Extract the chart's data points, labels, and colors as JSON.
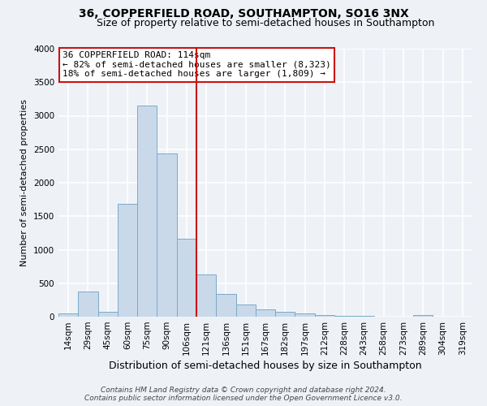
{
  "title": "36, COPPERFIELD ROAD, SOUTHAMPTON, SO16 3NX",
  "subtitle": "Size of property relative to semi-detached houses in Southampton",
  "xlabel": "Distribution of semi-detached houses by size in Southampton",
  "ylabel": "Number of semi-detached properties",
  "bin_labels": [
    "14sqm",
    "29sqm",
    "45sqm",
    "60sqm",
    "75sqm",
    "90sqm",
    "106sqm",
    "121sqm",
    "136sqm",
    "151sqm",
    "167sqm",
    "182sqm",
    "197sqm",
    "212sqm",
    "228sqm",
    "243sqm",
    "258sqm",
    "273sqm",
    "289sqm",
    "304sqm",
    "319sqm"
  ],
  "bar_heights": [
    50,
    375,
    75,
    1680,
    3150,
    2440,
    1160,
    630,
    340,
    185,
    110,
    70,
    50,
    30,
    15,
    10,
    5,
    5,
    30,
    5,
    0
  ],
  "property_size": 114,
  "property_label": "36 COPPERFIELD ROAD: 114sqm",
  "annotation_line1": "← 82% of semi-detached houses are smaller (8,323)",
  "annotation_line2": "18% of semi-detached houses are larger (1,809) →",
  "bar_color": "#c9d9ea",
  "bar_edge_color": "#7aaac8",
  "line_color": "#cc1111",
  "annotation_box_facecolor": "#ffffff",
  "annotation_box_edgecolor": "#cc1111",
  "background_color": "#eef2f7",
  "grid_color": "#ffffff",
  "footer_line1": "Contains HM Land Registry data © Crown copyright and database right 2024.",
  "footer_line2": "Contains public sector information licensed under the Open Government Licence v3.0.",
  "ylim": [
    0,
    4000
  ],
  "yticks": [
    0,
    500,
    1000,
    1500,
    2000,
    2500,
    3000,
    3500,
    4000
  ],
  "line_index": 7,
  "title_fontsize": 10,
  "subtitle_fontsize": 9,
  "xlabel_fontsize": 9,
  "ylabel_fontsize": 8,
  "tick_fontsize": 7.5,
  "annotation_fontsize": 8,
  "footer_fontsize": 6.5
}
